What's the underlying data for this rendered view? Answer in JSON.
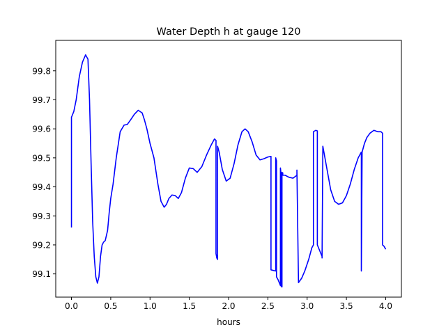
{
  "chart_data": {
    "type": "line",
    "title": "Water Depth h at gauge 120",
    "xlabel": "hours",
    "ylabel": "",
    "xlim": [
      -0.2,
      4.2
    ],
    "ylim": [
      99.02,
      99.905
    ],
    "xticks": [
      0.0,
      0.5,
      1.0,
      1.5,
      2.0,
      2.5,
      3.0,
      3.5,
      4.0
    ],
    "xtick_labels": [
      "0.0",
      "0.5",
      "1.0",
      "1.5",
      "2.0",
      "2.5",
      "3.0",
      "3.5",
      "4.0"
    ],
    "yticks": [
      99.1,
      99.2,
      99.3,
      99.4,
      99.5,
      99.6,
      99.7,
      99.8
    ],
    "ytick_labels": [
      "99.1",
      "99.2",
      "99.3",
      "99.4",
      "99.5",
      "99.6",
      "99.7",
      "99.8"
    ],
    "grid": false,
    "series": [
      {
        "name": "",
        "color": "#0000ff",
        "x": [
          0.0,
          0.0,
          0.03,
          0.06,
          0.1,
          0.14,
          0.18,
          0.21,
          0.23,
          0.25,
          0.27,
          0.29,
          0.31,
          0.33,
          0.35,
          0.37,
          0.39,
          0.41,
          0.43,
          0.46,
          0.48,
          0.5,
          0.53,
          0.57,
          0.62,
          0.67,
          0.71,
          0.75,
          0.8,
          0.85,
          0.9,
          0.93,
          0.96,
          1.0,
          1.05,
          1.1,
          1.14,
          1.18,
          1.21,
          1.24,
          1.28,
          1.32,
          1.36,
          1.4,
          1.45,
          1.5,
          1.55,
          1.6,
          1.66,
          1.72,
          1.78,
          1.82,
          1.84,
          1.84,
          1.85,
          1.86,
          1.86,
          1.88,
          1.92,
          1.97,
          2.02,
          2.07,
          2.12,
          2.17,
          2.21,
          2.25,
          2.3,
          2.35,
          2.4,
          2.45,
          2.5,
          2.54,
          2.54,
          2.6,
          2.6,
          2.61,
          2.61,
          2.63,
          2.66,
          2.66,
          2.67,
          2.67,
          2.68,
          2.68,
          2.69,
          2.69,
          2.72,
          2.77,
          2.82,
          2.87,
          2.87,
          2.89,
          2.93,
          2.97,
          3.02,
          3.06,
          3.08,
          3.08,
          3.11,
          3.13,
          3.13,
          3.19,
          3.19,
          3.2,
          3.22,
          3.26,
          3.3,
          3.35,
          3.4,
          3.45,
          3.5,
          3.55,
          3.6,
          3.65,
          3.69,
          3.69,
          3.7,
          3.71,
          3.73,
          3.76,
          3.8,
          3.85,
          3.9,
          3.94,
          3.96,
          3.96,
          3.98,
          4.0
        ],
        "y": [
          99.26,
          99.64,
          99.66,
          99.7,
          99.78,
          99.83,
          99.855,
          99.84,
          99.7,
          99.48,
          99.28,
          99.16,
          99.09,
          99.068,
          99.09,
          99.16,
          99.2,
          99.21,
          99.215,
          99.25,
          99.31,
          99.36,
          99.41,
          99.5,
          99.59,
          99.613,
          99.615,
          99.63,
          99.65,
          99.664,
          99.655,
          99.63,
          99.6,
          99.55,
          99.5,
          99.41,
          99.35,
          99.33,
          99.34,
          99.36,
          99.372,
          99.37,
          99.36,
          99.38,
          99.43,
          99.465,
          99.463,
          99.45,
          99.47,
          99.51,
          99.545,
          99.565,
          99.56,
          99.17,
          99.155,
          99.15,
          99.54,
          99.52,
          99.46,
          99.42,
          99.43,
          99.48,
          99.545,
          99.59,
          99.6,
          99.59,
          99.555,
          99.51,
          99.493,
          99.497,
          99.503,
          99.505,
          99.114,
          99.11,
          99.5,
          99.49,
          99.09,
          99.08,
          99.06,
          99.465,
          99.44,
          99.057,
          99.055,
          99.45,
          99.448,
          99.44,
          99.44,
          99.433,
          99.43,
          99.44,
          99.458,
          99.07,
          99.085,
          99.11,
          99.15,
          99.19,
          99.2,
          99.59,
          99.595,
          99.593,
          99.2,
          99.16,
          99.155,
          99.54,
          99.51,
          99.45,
          99.39,
          99.35,
          99.34,
          99.345,
          99.37,
          99.41,
          99.46,
          99.5,
          99.52,
          99.11,
          99.52,
          99.53,
          99.55,
          99.57,
          99.585,
          99.595,
          99.59,
          99.59,
          99.585,
          99.2,
          99.195,
          99.185
        ]
      }
    ]
  }
}
